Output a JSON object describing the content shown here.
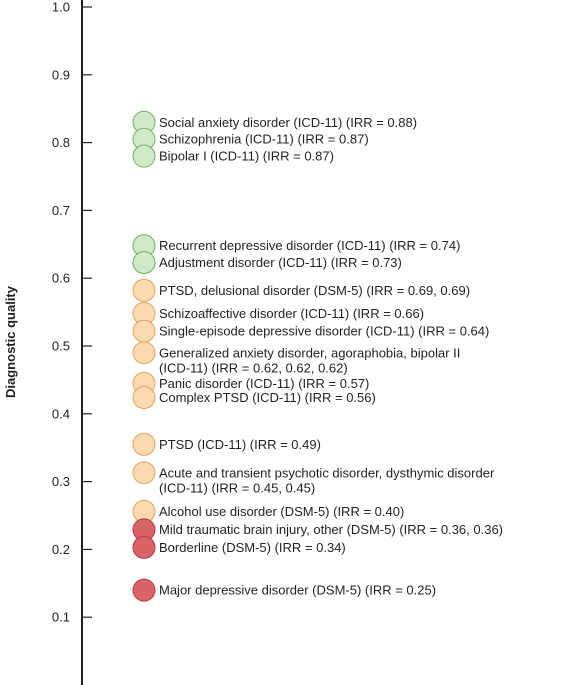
{
  "chart_data": {
    "type": "scatter",
    "ylabel": "Diagnostic quality",
    "ylim": [
      0.0,
      1.0
    ],
    "yticks": [
      "0.1",
      "0.2",
      "0.3",
      "0.4",
      "0.5",
      "0.6",
      "0.7",
      "0.8",
      "0.9",
      "1.0"
    ],
    "grid": false,
    "legend": "none",
    "colors": {
      "good": {
        "fill": "#cfe8c6",
        "stroke": "#6fae5e"
      },
      "fair": {
        "fill": "#fdd9b0",
        "stroke": "#e8a060"
      },
      "poor": {
        "fill": "#d96468",
        "stroke": "#b53a40"
      }
    },
    "points": [
      {
        "y": 0.83,
        "quality": "good",
        "lines": [
          "Social anxiety disorder (ICD-11) (IRR = 0.88)"
        ]
      },
      {
        "y": 0.805,
        "quality": "good",
        "lines": [
          "Schizophrenia (ICD-11) (IRR = 0.87)"
        ]
      },
      {
        "y": 0.78,
        "quality": "good",
        "lines": [
          "Bipolar I (ICD-11) (IRR = 0.87)"
        ]
      },
      {
        "y": 0.648,
        "quality": "good",
        "lines": [
          "Recurrent depressive disorder  (ICD-11) (IRR = 0.74)"
        ]
      },
      {
        "y": 0.623,
        "quality": "good",
        "lines": [
          "Adjustment disorder (ICD-11) (IRR = 0.73)"
        ]
      },
      {
        "y": 0.582,
        "quality": "fair",
        "lines": [
          "PTSD, delusional disorder (DSM-5) (IRR = 0.69, 0.69)"
        ]
      },
      {
        "y": 0.548,
        "quality": "fair",
        "lines": [
          "Schizoaffective disorder (ICD-11) (IRR = 0.66)"
        ]
      },
      {
        "y": 0.522,
        "quality": "fair",
        "lines": [
          "Single-episode depressive disorder (ICD-11) (IRR = 0.64)"
        ]
      },
      {
        "y": 0.49,
        "quality": "fair",
        "lines": [
          "Generalized anxiety disorder, agoraphobia, bipolar II",
          "(ICD-11) (IRR = 0.62, 0.62, 0.62)"
        ]
      },
      {
        "y": 0.445,
        "quality": "fair",
        "lines": [
          "Panic disorder (ICD-11) (IRR = 0.57)"
        ]
      },
      {
        "y": 0.424,
        "quality": "fair",
        "lines": [
          "Complex PTSD (ICD-11) (IRR = 0.56)"
        ]
      },
      {
        "y": 0.355,
        "quality": "fair",
        "lines": [
          "PTSD (ICD-11) (IRR = 0.49)"
        ]
      },
      {
        "y": 0.313,
        "quality": "fair",
        "lines": [
          "Acute and transient psychotic disorder, dysthymic disorder",
          "(ICD-11) (IRR = 0.45, 0.45)"
        ]
      },
      {
        "y": 0.256,
        "quality": "fair",
        "lines": [
          "Alcohol use disorder (DSM-5) (IRR = 0.40)"
        ]
      },
      {
        "y": 0.229,
        "quality": "poor",
        "lines": [
          "Mild traumatic brain injury, other (DSM-5) (IRR = 0.36, 0.36)"
        ]
      },
      {
        "y": 0.203,
        "quality": "poor",
        "lines": [
          "Borderline (DSM-5) (IRR = 0.34)"
        ]
      },
      {
        "y": 0.14,
        "quality": "poor",
        "lines": [
          "Major depressive disorder (DSM-5) (IRR = 0.25)"
        ]
      }
    ]
  }
}
